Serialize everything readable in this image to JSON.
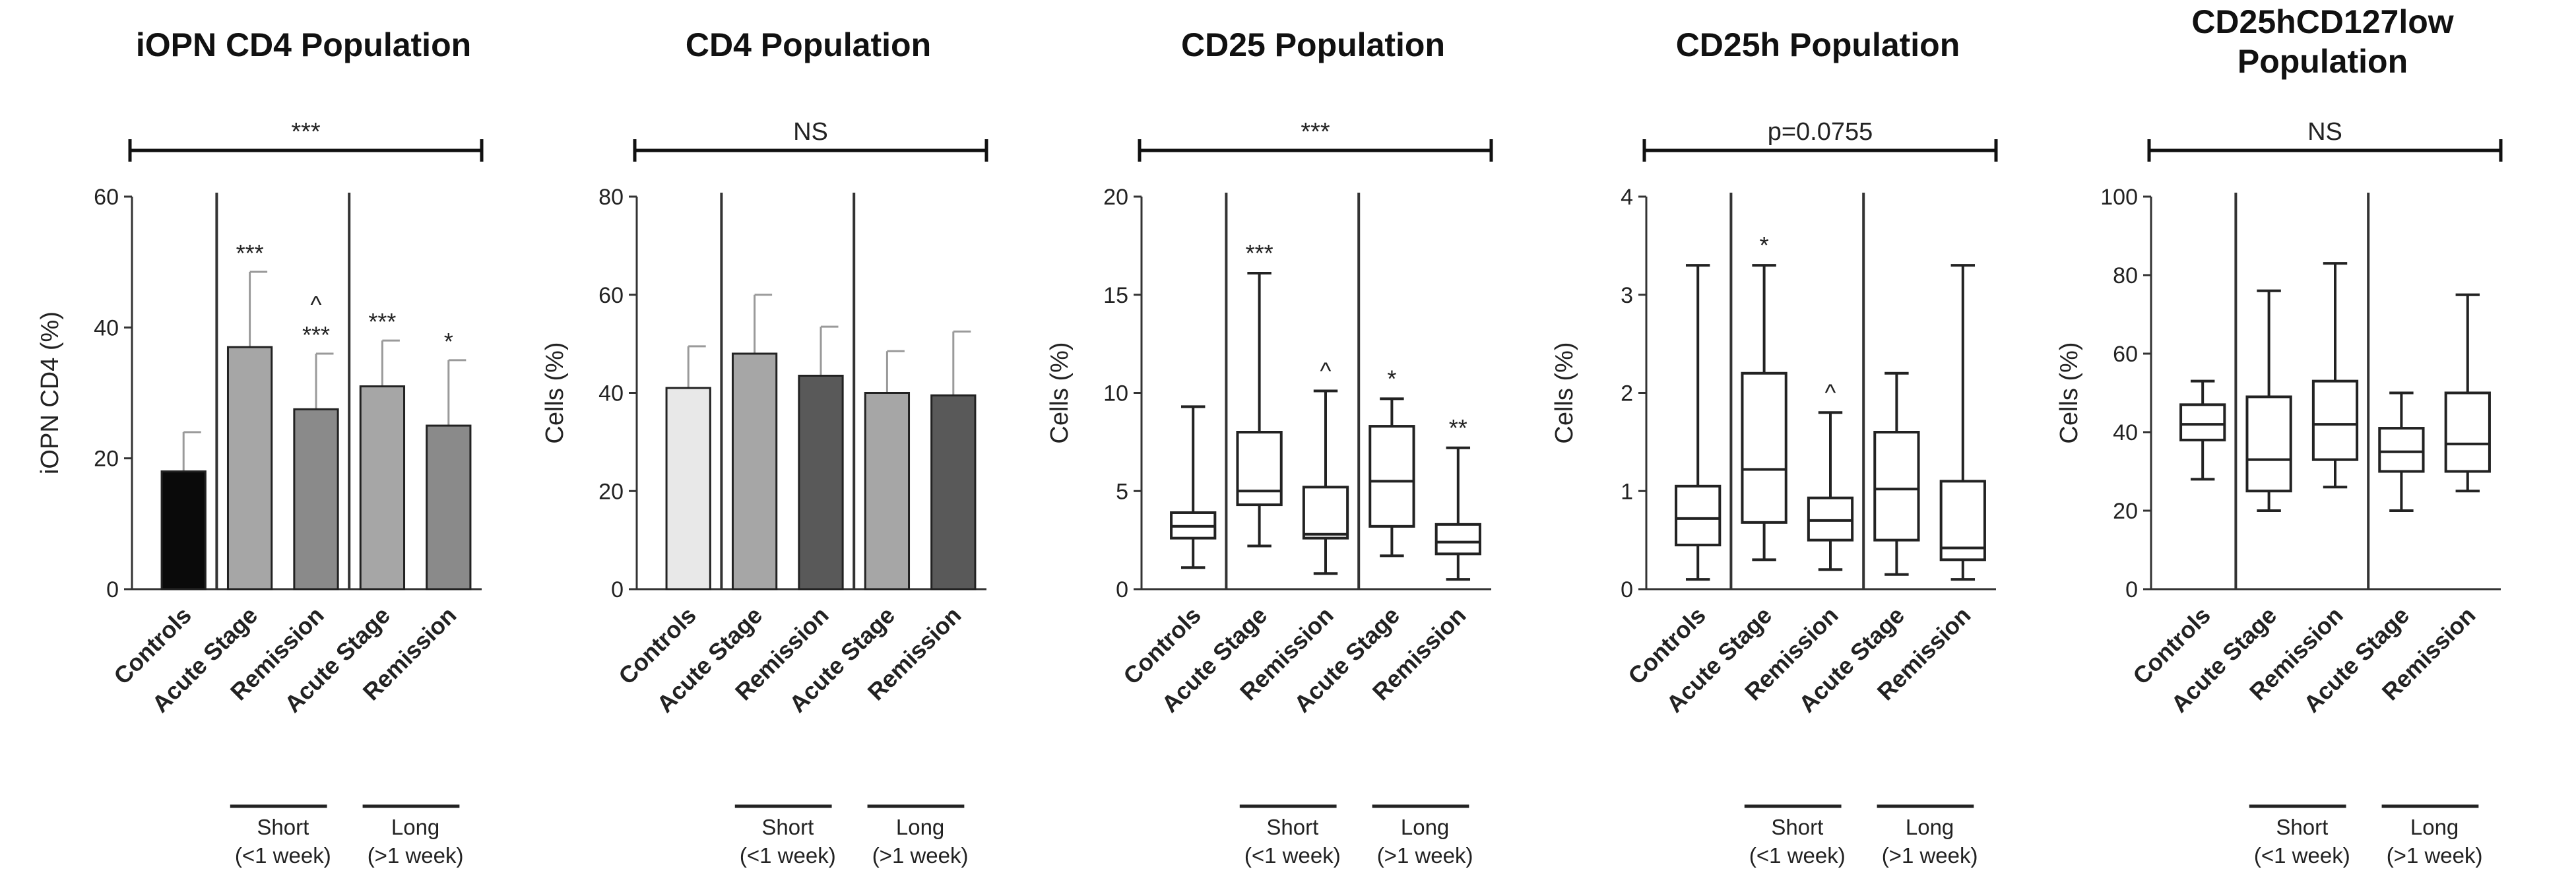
{
  "chart_data": [
    {
      "type": "bar",
      "title": "iOPN CD4 Population",
      "ylabel": "iOPN CD4 (%)",
      "ylim": [
        0,
        60
      ],
      "yticks": [
        "0",
        "20",
        "40",
        "60"
      ],
      "overall_significance": "***",
      "categories": [
        "Controls",
        "Acute Stage",
        "Remission",
        "Acute Stage",
        "Remission"
      ],
      "values": [
        18,
        37,
        27.5,
        31,
        25
      ],
      "errors": [
        6,
        11.5,
        8.5,
        7,
        10
      ],
      "bar_colors": [
        "#0a0a0a",
        "#a6a6a6",
        "#8a8a8a",
        "#a6a6a6",
        "#8a8a8a"
      ],
      "annotations": [
        "",
        "***",
        "^\n***",
        "***",
        "*"
      ],
      "groups": [
        {
          "name": "Short",
          "sub": "(<1 week)"
        },
        {
          "name": "Long",
          "sub": "(>1 week)"
        }
      ]
    },
    {
      "type": "bar",
      "title": "CD4 Population",
      "ylabel": "Cells (%)",
      "ylim": [
        0,
        80
      ],
      "yticks": [
        "0",
        "20",
        "40",
        "60",
        "80"
      ],
      "overall_significance": "NS",
      "categories": [
        "Controls",
        "Acute Stage",
        "Remission",
        "Acute Stage",
        "Remission"
      ],
      "values": [
        41,
        48,
        43.5,
        40,
        39.5
      ],
      "errors": [
        8.5,
        12,
        10,
        8.5,
        13
      ],
      "bar_colors": [
        "#e8e8e8",
        "#a6a6a6",
        "#595959",
        "#a6a6a6",
        "#595959"
      ],
      "annotations": [
        "",
        "",
        "",
        "",
        ""
      ],
      "groups": [
        {
          "name": "Short",
          "sub": "(<1 week)"
        },
        {
          "name": "Long",
          "sub": "(>1 week)"
        }
      ]
    },
    {
      "type": "box",
      "title": "CD25 Population",
      "ylabel": "Cells (%)",
      "ylim": [
        0,
        20
      ],
      "yticks": [
        "0",
        "5",
        "10",
        "15",
        "20"
      ],
      "overall_significance": "***",
      "categories": [
        "Controls",
        "Acute Stage",
        "Remission",
        "Acute Stage",
        "Remission"
      ],
      "boxes": [
        {
          "min": 1.1,
          "q1": 2.6,
          "median": 3.2,
          "q3": 3.9,
          "max": 9.3
        },
        {
          "min": 2.2,
          "q1": 4.3,
          "median": 5.0,
          "q3": 8.0,
          "max": 16.1
        },
        {
          "min": 0.8,
          "q1": 2.6,
          "median": 2.8,
          "q3": 5.2,
          "max": 10.1
        },
        {
          "min": 1.7,
          "q1": 3.2,
          "median": 5.5,
          "q3": 8.3,
          "max": 9.7
        },
        {
          "min": 0.5,
          "q1": 1.8,
          "median": 2.4,
          "q3": 3.3,
          "max": 7.2
        }
      ],
      "annotations": [
        "",
        "***",
        "^",
        "*",
        "**"
      ],
      "groups": [
        {
          "name": "Short",
          "sub": "(<1 week)"
        },
        {
          "name": "Long",
          "sub": "(>1 week)"
        }
      ]
    },
    {
      "type": "box",
      "title": "CD25h Population",
      "ylabel": "Cells (%)",
      "ylim": [
        0,
        4
      ],
      "yticks": [
        "0",
        "1",
        "2",
        "3",
        "4"
      ],
      "overall_significance": "p=0.0755",
      "categories": [
        "Controls",
        "Acute Stage",
        "Remission",
        "Acute Stage",
        "Remission"
      ],
      "boxes": [
        {
          "min": 0.1,
          "q1": 0.45,
          "median": 0.72,
          "q3": 1.05,
          "max": 3.3
        },
        {
          "min": 0.3,
          "q1": 0.68,
          "median": 1.22,
          "q3": 2.2,
          "max": 3.3
        },
        {
          "min": 0.2,
          "q1": 0.5,
          "median": 0.7,
          "q3": 0.93,
          "max": 1.8
        },
        {
          "min": 0.15,
          "q1": 0.5,
          "median": 1.02,
          "q3": 1.6,
          "max": 2.2
        },
        {
          "min": 0.1,
          "q1": 0.3,
          "median": 0.42,
          "q3": 1.1,
          "max": 3.3
        }
      ],
      "annotations": [
        "",
        "*",
        "^",
        "",
        ""
      ],
      "groups": [
        {
          "name": "Short",
          "sub": "(<1 week)"
        },
        {
          "name": "Long",
          "sub": "(>1 week)"
        }
      ]
    },
    {
      "type": "box",
      "title": "CD25hCD127low\nPopulation",
      "ylabel": "Cells (%)",
      "ylim": [
        0,
        100
      ],
      "yticks": [
        "0",
        "20",
        "40",
        "60",
        "80",
        "100"
      ],
      "overall_significance": "NS",
      "categories": [
        "Controls",
        "Acute Stage",
        "Remission",
        "Acute Stage",
        "Remission"
      ],
      "boxes": [
        {
          "min": 28,
          "q1": 38,
          "median": 42,
          "q3": 47,
          "max": 53
        },
        {
          "min": 20,
          "q1": 25,
          "median": 33,
          "q3": 49,
          "max": 76
        },
        {
          "min": 26,
          "q1": 33,
          "median": 42,
          "q3": 53,
          "max": 83
        },
        {
          "min": 20,
          "q1": 30,
          "median": 35,
          "q3": 41,
          "max": 50
        },
        {
          "min": 25,
          "q1": 30,
          "median": 37,
          "q3": 50,
          "max": 75
        }
      ],
      "annotations": [
        "",
        "",
        "",
        "",
        ""
      ],
      "groups": [
        {
          "name": "Short",
          "sub": "(<1 week)"
        },
        {
          "name": "Long",
          "sub": "(>1 week)"
        }
      ]
    }
  ]
}
